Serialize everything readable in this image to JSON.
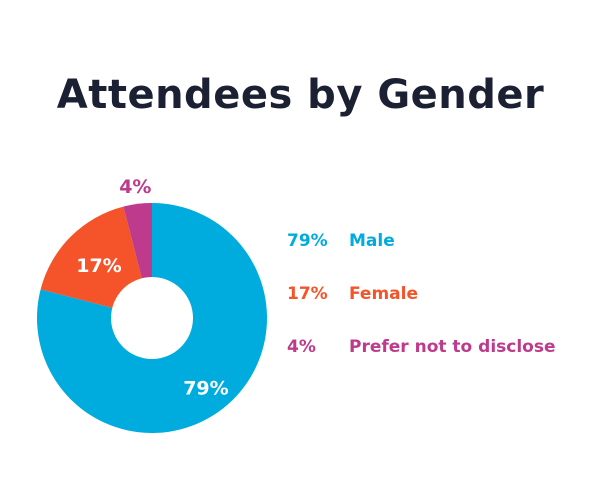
{
  "chart_data": {
    "type": "pie",
    "variant": "donut",
    "title": "Attendees by Gender",
    "slices": [
      {
        "label": "Male",
        "value": 79,
        "display": "79%",
        "color": "#00abdd"
      },
      {
        "label": "Female",
        "value": 17,
        "display": "17%",
        "color": "#f5532a"
      },
      {
        "label": "Prefer not to disclose",
        "value": 4,
        "display": "4%",
        "color": "#bd3a8c"
      }
    ],
    "legend_position": "right"
  }
}
